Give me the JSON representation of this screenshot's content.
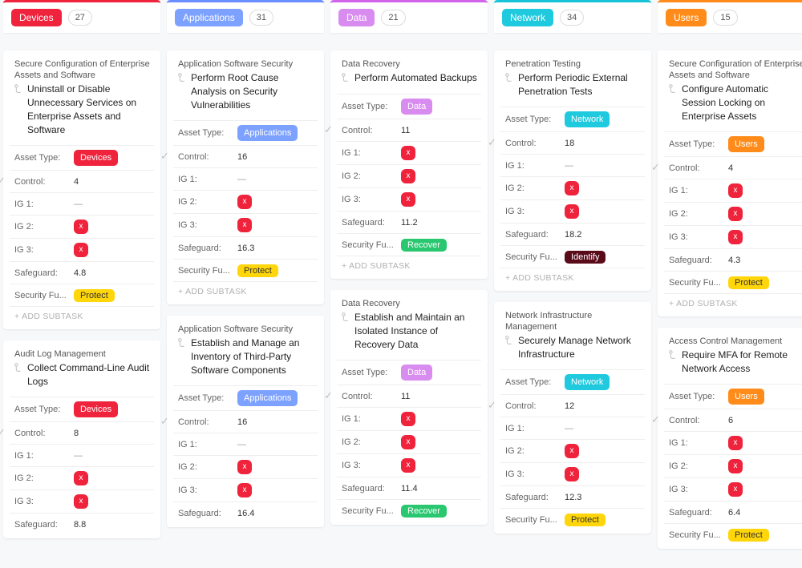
{
  "colors": {
    "devices_border": "#ef233c",
    "applications_border": "#6a8dff",
    "data_border": "#d264eb",
    "network_border": "#17c3d9",
    "users_border": "#ff8c1a",
    "devices_pill": "#ef233c",
    "applications_pill": "#7da1ff",
    "data_pill": "#d98cf0",
    "network_pill": "#1fc9de",
    "users_pill": "#ff8c1a",
    "ig_x_bg": "#ef233c",
    "sf_protect": "#ffd60a",
    "sf_recover": "#29c76f",
    "sf_recover_text": "#ffffff",
    "sf_identify": "#5a0b1a",
    "sf_identify_text": "#ffffff"
  },
  "labels": {
    "asset_type": "Asset Type:",
    "control": "Control:",
    "ig1": "IG 1:",
    "ig2": "IG 2:",
    "ig3": "IG 3:",
    "safeguard": "Safeguard:",
    "security_fn": "Security Fu...",
    "add_subtask": "+ ADD SUBTASK",
    "ig_x": "x",
    "dash": "—"
  },
  "columns": [
    {
      "name": "Devices",
      "pill_color_key": "devices_pill",
      "border_color_key": "devices_border",
      "count": 27,
      "cards": [
        {
          "category": "Secure Configuration of Enterprise Assets and Software",
          "title": "Uninstall or Disable Unnecessary Services on Enterprise Assets and Software",
          "asset_tag_color_key": "devices_pill",
          "asset_tag_label": "Devices",
          "control": "4",
          "ig1": "dash",
          "ig2": "x",
          "ig3": "x",
          "safeguard": "4.8",
          "sf": "Protect",
          "sf_key": "sf_protect",
          "show_add": true
        },
        {
          "category": "Audit Log Management",
          "title": "Collect Command-Line Audit Logs",
          "asset_tag_color_key": "devices_pill",
          "asset_tag_label": "Devices",
          "control": "8",
          "ig1": "dash",
          "ig2": "x",
          "ig3": "x",
          "safeguard": "8.8",
          "truncate": true
        }
      ]
    },
    {
      "name": "Applications",
      "pill_color_key": "applications_pill",
      "border_color_key": "applications_border",
      "count": 31,
      "cards": [
        {
          "category": "Application Software Security",
          "title": "Perform Root Cause Analysis on Security Vulnerabilities",
          "asset_tag_color_key": "applications_pill",
          "asset_tag_label": "Applications",
          "control": "16",
          "ig1": "dash",
          "ig2": "x",
          "ig3": "x",
          "safeguard": "16.3",
          "sf": "Protect",
          "sf_key": "sf_protect",
          "show_add": true
        },
        {
          "category": "Application Software Security",
          "title": "Establish and Manage an Inventory of Third-Party Software Components",
          "asset_tag_color_key": "applications_pill",
          "asset_tag_label": "Applications",
          "control": "16",
          "ig1": "dash",
          "ig2": "x",
          "ig3": "x",
          "safeguard": "16.4",
          "truncate": true
        }
      ]
    },
    {
      "name": "Data",
      "pill_color_key": "data_pill",
      "border_color_key": "data_border",
      "count": 21,
      "cards": [
        {
          "category": "Data Recovery",
          "title": "Perform Automated Backups",
          "asset_tag_color_key": "data_pill",
          "asset_tag_label": "Data",
          "control": "11",
          "ig1": "x",
          "ig2": "x",
          "ig3": "x",
          "safeguard": "11.2",
          "sf": "Recover",
          "sf_key": "sf_recover",
          "show_add": true
        },
        {
          "category": "Data Recovery",
          "title": "Establish and Maintain an Isolated Instance of Recovery Data",
          "asset_tag_color_key": "data_pill",
          "asset_tag_label": "Data",
          "control": "11",
          "ig1": "x",
          "ig2": "x",
          "ig3": "x",
          "safeguard": "11.4",
          "sf": "Recover",
          "sf_key": "sf_recover",
          "truncate": true
        }
      ]
    },
    {
      "name": "Network",
      "pill_color_key": "network_pill",
      "border_color_key": "network_border",
      "count": 34,
      "cards": [
        {
          "category": "Penetration Testing",
          "title": "Perform Periodic External Penetration Tests",
          "asset_tag_color_key": "network_pill",
          "asset_tag_label": "Network",
          "control": "18",
          "ig1": "dash",
          "ig2": "x",
          "ig3": "x",
          "safeguard": "18.2",
          "sf": "Identify",
          "sf_key": "sf_identify",
          "show_add": true
        },
        {
          "category": "Network Infrastructure Management",
          "title": "Securely Manage Network Infrastructure",
          "asset_tag_color_key": "network_pill",
          "asset_tag_label": "Network",
          "control": "12",
          "ig1": "dash",
          "ig2": "x",
          "ig3": "x",
          "safeguard": "12.3",
          "sf": "Protect",
          "sf_key": "sf_protect",
          "truncate": true
        }
      ]
    },
    {
      "name": "Users",
      "pill_color_key": "users_pill",
      "border_color_key": "users_border",
      "count": 15,
      "cards": [
        {
          "category": "Secure Configuration of Enterprise Assets and Software",
          "title": "Configure Automatic Session Locking on Enterprise Assets",
          "asset_tag_color_key": "users_pill",
          "asset_tag_label": "Users",
          "control": "4",
          "ig1": "x",
          "ig2": "x",
          "ig3": "x",
          "safeguard": "4.3",
          "sf": "Protect",
          "sf_key": "sf_protect",
          "show_add": true
        },
        {
          "category": "Access Control Management",
          "title": "Require MFA for Remote Network Access",
          "asset_tag_color_key": "users_pill",
          "asset_tag_label": "Users",
          "control": "6",
          "ig1": "x",
          "ig2": "x",
          "ig3": "x",
          "safeguard": "6.4",
          "sf": "Protect",
          "sf_key": "sf_protect",
          "truncate": true
        }
      ]
    }
  ]
}
